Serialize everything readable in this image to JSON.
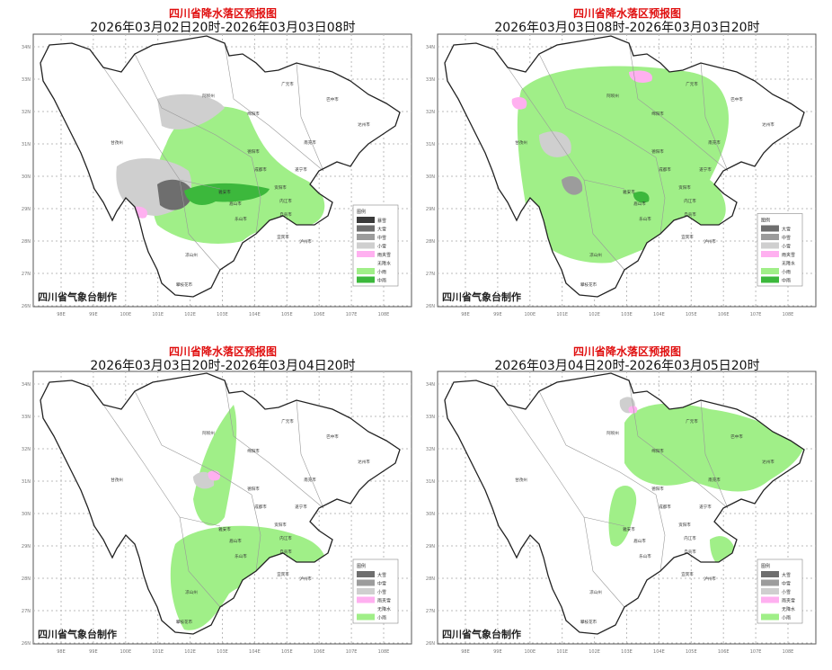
{
  "maker": "四川省气象台制作",
  "legend_title": "图例",
  "x_ticks": [
    "98E",
    "99E",
    "100E",
    "101E",
    "102E",
    "103E",
    "104E",
    "105E",
    "106E",
    "107E",
    "108E"
  ],
  "y_ticks": [
    "34N",
    "33N",
    "32N",
    "31N",
    "30N",
    "29N",
    "28N",
    "27N",
    "26N"
  ],
  "categories": {
    "暴雪": "#3a3a3a",
    "大雪": "#6e6e6e",
    "中雪": "#9c9c9c",
    "小雪": "#cfcfcf",
    "雨夹雪": "#ffb0f0",
    "无降水": "#ffffff",
    "小雨": "#a0ef88",
    "中雨": "#3cb83c"
  },
  "cities": [
    "甘孜州",
    "阿坝州",
    "绵阳市",
    "广元市",
    "巴中市",
    "达州市",
    "南充市",
    "德阳市",
    "成都市",
    "遂宁市",
    "雅安市",
    "眉山市",
    "资阳市",
    "乐山市",
    "内江市",
    "自贡市",
    "宜宾市",
    "泸州市",
    "凉山州",
    "攀枝花市"
  ],
  "panels": [
    {
      "title": "四川省降水落区预报图",
      "subtitle": "2026年03月02日20时-2026年03月03日08时",
      "legend": [
        "暴雪",
        "大雪",
        "中雪",
        "小雪",
        "雨夹雪",
        "无降水",
        "小雨",
        "中雨"
      ]
    },
    {
      "title": "四川省降水落区预报图",
      "subtitle": "2026年03月03日08时-2026年03月03日20时",
      "legend": [
        "大雪",
        "中雪",
        "小雪",
        "雨夹雪",
        "无降水",
        "小雨",
        "中雨"
      ]
    },
    {
      "title": "四川省降水落区预报图",
      "subtitle": "2026年03月03日20时-2026年03月04日20时",
      "legend": [
        "大雪",
        "中雪",
        "小雪",
        "雨夹雪",
        "无降水",
        "小雨"
      ]
    },
    {
      "title": "四川省降水落区预报图",
      "subtitle": "2026年03月04日20时-2026年03月05日20时",
      "legend": [
        "大雪",
        "中雪",
        "小雪",
        "雨夹雪",
        "无降水",
        "小雨"
      ]
    }
  ]
}
